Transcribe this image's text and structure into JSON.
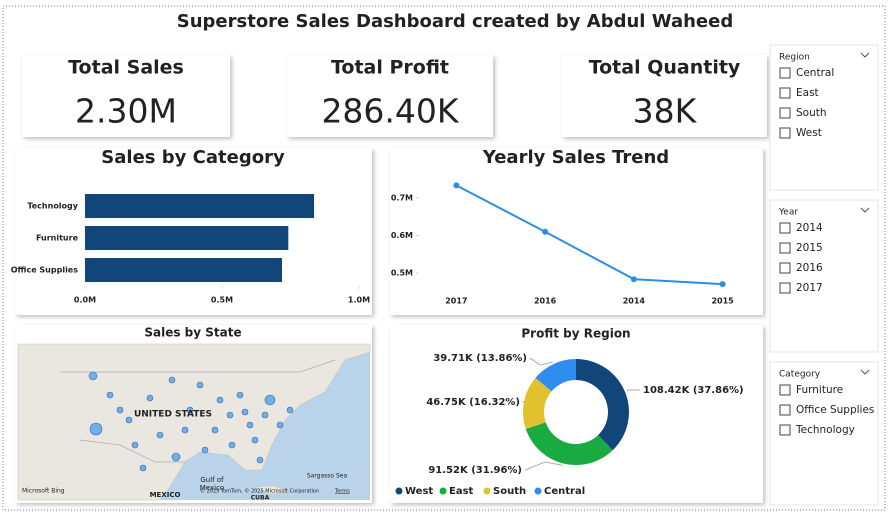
{
  "title": "Superstore Sales Dashboard created by Abdul Waheed",
  "kpis": [
    {
      "label": "Total Sales",
      "value": "2.30M"
    },
    {
      "label": "Total Profit",
      "value": "286.40K"
    },
    {
      "label": "Total Quantity",
      "value": "38K"
    }
  ],
  "chart_data": [
    {
      "type": "hbar",
      "title": "Sales by Category",
      "categories": [
        "Technology",
        "Furniture",
        "Office Supplies"
      ],
      "values": [
        0.836,
        0.742,
        0.719
      ],
      "color": "#12467b",
      "xlim": [
        0,
        1
      ],
      "xticks": [
        {
          "value": 0,
          "label": "0.0M"
        },
        {
          "value": 0.5,
          "label": "0.5M"
        },
        {
          "value": 1,
          "label": "1.0M"
        }
      ]
    },
    {
      "type": "line",
      "title": "Yearly Sales Trend",
      "categories": [
        "2017",
        "2016",
        "2014",
        "2015"
      ],
      "values": [
        0.733,
        0.61,
        0.484,
        0.471
      ],
      "color": "#2a8fe0",
      "ylim": [
        0.45,
        0.75
      ],
      "yticks": [
        {
          "value": 0.5,
          "label": "0.5M"
        },
        {
          "value": 0.6,
          "label": "0.6M"
        },
        {
          "value": 0.7,
          "label": "0.7M"
        }
      ]
    },
    {
      "type": "donut",
      "title": "Profit by Region",
      "categories": [
        "West",
        "East",
        "South",
        "Central"
      ],
      "values": [
        108.42,
        91.52,
        46.75,
        39.71
      ],
      "value_labels": [
        "108.42K (37.86%)",
        "91.52K (31.96%)",
        "46.75K (16.32%)",
        "39.71K (13.86%)"
      ],
      "colors": [
        "#12467b",
        "#1aab40",
        "#e2c12f",
        "#2e8ef0"
      ],
      "legend": "bottom"
    }
  ],
  "map": {
    "title": "Sales by State",
    "labels": [
      "UNITED STATES",
      "Gulf of",
      "Mexico",
      "MEXICO",
      "Sargasso Sea",
      "CUBA"
    ],
    "attribution": "© 2025 TomTom, © 2025 Microsoft Corporation",
    "terms": "Terms",
    "logo": "Microsoft Bing"
  },
  "slicers": [
    {
      "title": "Region",
      "items": [
        "Central",
        "East",
        "South",
        "West"
      ]
    },
    {
      "title": "Year",
      "items": [
        "2014",
        "2015",
        "2016",
        "2017"
      ]
    },
    {
      "title": "Category",
      "items": [
        "Furniture",
        "Office Supplies",
        "Technology"
      ]
    }
  ]
}
